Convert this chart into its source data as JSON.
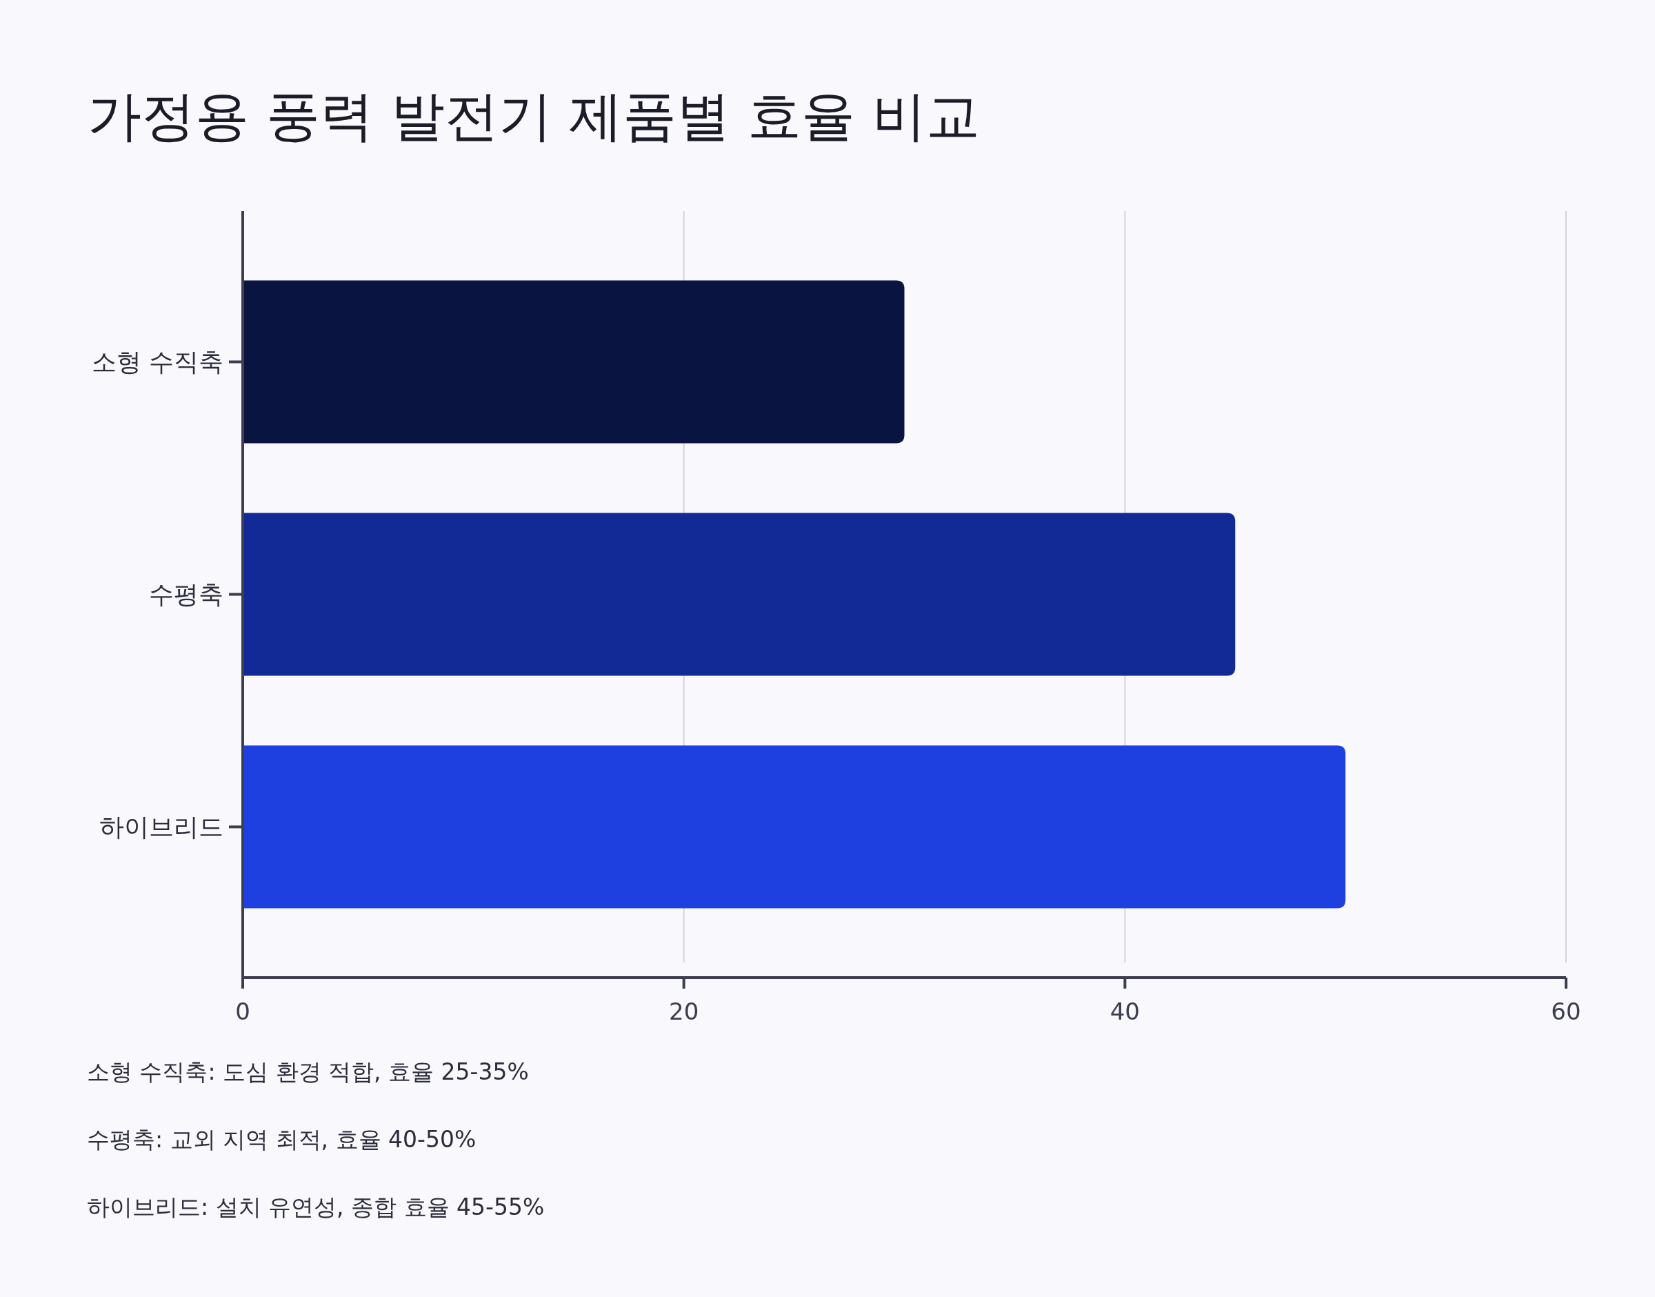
{
  "chart_data": {
    "type": "bar",
    "orientation": "horizontal",
    "title": "가정용 풍력 발전기 제품별 효율 비교",
    "categories": [
      "소형 수직축",
      "수평축",
      "하이브리드"
    ],
    "values": [
      30,
      45,
      50
    ],
    "colors": [
      "#0a1440",
      "#122a96",
      "#1e40e0"
    ],
    "xlim": [
      0,
      60
    ],
    "xticks": [
      0,
      20,
      40,
      60
    ],
    "grid": "x",
    "annotations": [
      "소형 수직축: 도심 환경 적합, 효율 25-35%",
      "수평축: 교외 지역 최적, 효율 40-50%",
      "하이브리드: 설치 유연성, 종합 효율 45-55%"
    ]
  }
}
